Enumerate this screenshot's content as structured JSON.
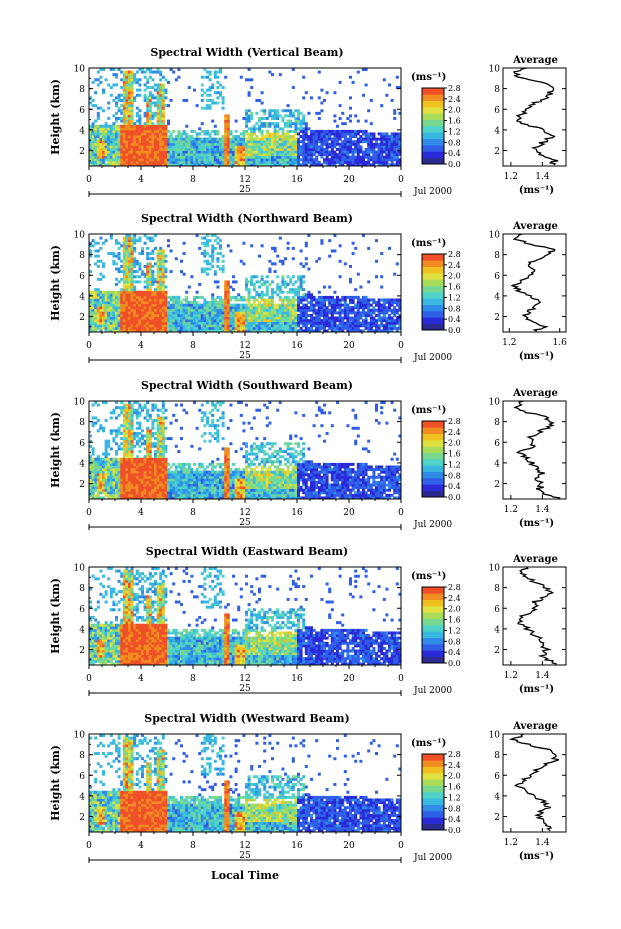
{
  "figure": {
    "xlabel": "Local Time",
    "date_label": "Jul 2000",
    "day_label": "25",
    "ylabel": "Height (km)",
    "cb_unit": "(ms⁻¹)",
    "avg_title": "Average",
    "avg_unit": "(ms⁻¹)"
  },
  "colors": {
    "scale": [
      "#2b2b8f",
      "#2a2ad8",
      "#2f5fe8",
      "#2e8ce8",
      "#38b8e0",
      "#4fd2c8",
      "#78d890",
      "#a8dc58",
      "#e0e040",
      "#f0c020",
      "#f08c20",
      "#f05028"
    ]
  },
  "chart_data": [
    {
      "type": "heatmap",
      "title": "Spectral Width (Vertical Beam)",
      "x_ticks": [
        "0",
        "4",
        "8",
        "12",
        "16",
        "20",
        "0"
      ],
      "y_ticks": [
        "2",
        "4",
        "6",
        "8",
        "10"
      ],
      "xlim": [
        0,
        24
      ],
      "ylim": [
        0.5,
        10
      ],
      "colorbar_ticks": [
        "0.0",
        "0.4",
        "0.8",
        "1.2",
        "1.6",
        "2.0",
        "2.4",
        "2.8"
      ],
      "colorbar_range": [
        0,
        2.8
      ],
      "average": {
        "x_ticks": [
          "1.2",
          "1.4"
        ],
        "xlim": [
          1.15,
          1.55
        ],
        "profile": [
          [
            0.6,
            1.45
          ],
          [
            1.0,
            1.48
          ],
          [
            1.5,
            1.4
          ],
          [
            2.0,
            1.35
          ],
          [
            2.5,
            1.38
          ],
          [
            3.0,
            1.42
          ],
          [
            3.5,
            1.47
          ],
          [
            4.0,
            1.4
          ],
          [
            4.5,
            1.3
          ],
          [
            5.0,
            1.24
          ],
          [
            5.5,
            1.27
          ],
          [
            6.0,
            1.3
          ],
          [
            6.5,
            1.34
          ],
          [
            7.0,
            1.41
          ],
          [
            7.5,
            1.45
          ],
          [
            8.0,
            1.47
          ],
          [
            8.5,
            1.43
          ],
          [
            9.0,
            1.26
          ],
          [
            9.5,
            1.22
          ],
          [
            10.0,
            1.3
          ]
        ]
      }
    },
    {
      "type": "heatmap",
      "title": "Spectral Width (Northward Beam)",
      "x_ticks": [
        "0",
        "4",
        "8",
        "12",
        "16",
        "20",
        "0"
      ],
      "y_ticks": [
        "2",
        "4",
        "6",
        "8",
        "10"
      ],
      "xlim": [
        0,
        24
      ],
      "ylim": [
        0.5,
        10
      ],
      "colorbar_ticks": [
        "0.0",
        "0.4",
        "0.8",
        "1.2",
        "1.6",
        "2.0",
        "2.4",
        "2.8"
      ],
      "colorbar_range": [
        0,
        2.8
      ],
      "average": {
        "x_ticks": [
          "1.2",
          "1.6"
        ],
        "xlim": [
          1.15,
          1.65
        ],
        "profile": [
          [
            0.6,
            1.4
          ],
          [
            1.0,
            1.48
          ],
          [
            1.5,
            1.37
          ],
          [
            2.0,
            1.32
          ],
          [
            2.5,
            1.36
          ],
          [
            3.0,
            1.4
          ],
          [
            3.5,
            1.45
          ],
          [
            4.0,
            1.36
          ],
          [
            4.5,
            1.28
          ],
          [
            5.0,
            1.24
          ],
          [
            5.5,
            1.3
          ],
          [
            6.0,
            1.36
          ],
          [
            6.5,
            1.38
          ],
          [
            7.0,
            1.34
          ],
          [
            7.5,
            1.42
          ],
          [
            8.0,
            1.5
          ],
          [
            8.5,
            1.55
          ],
          [
            9.0,
            1.38
          ],
          [
            9.5,
            1.24
          ],
          [
            10.0,
            1.3
          ]
        ]
      }
    },
    {
      "type": "heatmap",
      "title": "Spectral Width (Southward Beam)",
      "x_ticks": [
        "0",
        "4",
        "8",
        "12",
        "16",
        "20",
        "0"
      ],
      "y_ticks": [
        "2",
        "4",
        "6",
        "8",
        "10"
      ],
      "xlim": [
        0,
        24
      ],
      "ylim": [
        0.5,
        10
      ],
      "colorbar_ticks": [
        "0.0",
        "0.4",
        "0.8",
        "1.2",
        "1.6",
        "2.0",
        "2.4",
        "2.8"
      ],
      "colorbar_range": [
        0,
        2.8
      ],
      "average": {
        "x_ticks": [
          "1.2",
          "1.4"
        ],
        "xlim": [
          1.15,
          1.55
        ],
        "profile": [
          [
            0.6,
            1.5
          ],
          [
            1.0,
            1.42
          ],
          [
            1.5,
            1.38
          ],
          [
            2.0,
            1.4
          ],
          [
            2.5,
            1.35
          ],
          [
            3.0,
            1.4
          ],
          [
            3.5,
            1.36
          ],
          [
            4.0,
            1.33
          ],
          [
            4.5,
            1.3
          ],
          [
            5.0,
            1.26
          ],
          [
            5.5,
            1.32
          ],
          [
            6.0,
            1.36
          ],
          [
            6.5,
            1.32
          ],
          [
            7.0,
            1.38
          ],
          [
            7.5,
            1.44
          ],
          [
            8.0,
            1.46
          ],
          [
            8.5,
            1.4
          ],
          [
            9.0,
            1.28
          ],
          [
            9.5,
            1.24
          ],
          [
            10.0,
            1.28
          ]
        ]
      }
    },
    {
      "type": "heatmap",
      "title": "Spectral Width (Eastward Beam)",
      "x_ticks": [
        "0",
        "4",
        "8",
        "12",
        "16",
        "20",
        "0"
      ],
      "y_ticks": [
        "2",
        "4",
        "6",
        "8",
        "10"
      ],
      "xlim": [
        0,
        24
      ],
      "ylim": [
        0.5,
        10
      ],
      "colorbar_ticks": [
        "0.0",
        "0.4",
        "0.8",
        "1.2",
        "1.6",
        "2.0",
        "2.4",
        "2.8"
      ],
      "colorbar_range": [
        0,
        2.8
      ],
      "average": {
        "x_ticks": [
          "1.2",
          "1.4"
        ],
        "xlim": [
          1.15,
          1.55
        ],
        "profile": [
          [
            0.6,
            1.48
          ],
          [
            1.0,
            1.44
          ],
          [
            1.5,
            1.4
          ],
          [
            2.0,
            1.42
          ],
          [
            2.5,
            1.38
          ],
          [
            3.0,
            1.4
          ],
          [
            3.5,
            1.34
          ],
          [
            4.0,
            1.3
          ],
          [
            4.5,
            1.26
          ],
          [
            5.0,
            1.24
          ],
          [
            5.5,
            1.3
          ],
          [
            6.0,
            1.36
          ],
          [
            6.5,
            1.34
          ],
          [
            7.0,
            1.4
          ],
          [
            7.5,
            1.45
          ],
          [
            8.0,
            1.42
          ],
          [
            8.5,
            1.36
          ],
          [
            9.0,
            1.3
          ],
          [
            9.5,
            1.26
          ],
          [
            10.0,
            1.3
          ]
        ]
      }
    },
    {
      "type": "heatmap",
      "title": "Spectral Width (Westward Beam)",
      "x_ticks": [
        "0",
        "4",
        "8",
        "12",
        "16",
        "20",
        "0"
      ],
      "y_ticks": [
        "2",
        "4",
        "6",
        "8",
        "10"
      ],
      "xlim": [
        0,
        24
      ],
      "ylim": [
        0.5,
        10
      ],
      "colorbar_ticks": [
        "0.0",
        "0.4",
        "0.8",
        "1.2",
        "1.6",
        "2.0",
        "2.4",
        "2.8"
      ],
      "colorbar_range": [
        0,
        2.8
      ],
      "average": {
        "x_ticks": [
          "1.2",
          "1.4"
        ],
        "xlim": [
          1.15,
          1.55
        ],
        "profile": [
          [
            0.6,
            1.44
          ],
          [
            1.0,
            1.46
          ],
          [
            1.5,
            1.4
          ],
          [
            2.0,
            1.38
          ],
          [
            2.5,
            1.4
          ],
          [
            3.0,
            1.44
          ],
          [
            3.5,
            1.4
          ],
          [
            4.0,
            1.34
          ],
          [
            4.5,
            1.28
          ],
          [
            5.0,
            1.24
          ],
          [
            5.5,
            1.28
          ],
          [
            6.0,
            1.32
          ],
          [
            6.5,
            1.36
          ],
          [
            7.0,
            1.42
          ],
          [
            7.5,
            1.48
          ],
          [
            8.0,
            1.5
          ],
          [
            8.5,
            1.44
          ],
          [
            9.0,
            1.3
          ],
          [
            9.5,
            1.22
          ],
          [
            10.0,
            1.28
          ]
        ]
      }
    }
  ]
}
